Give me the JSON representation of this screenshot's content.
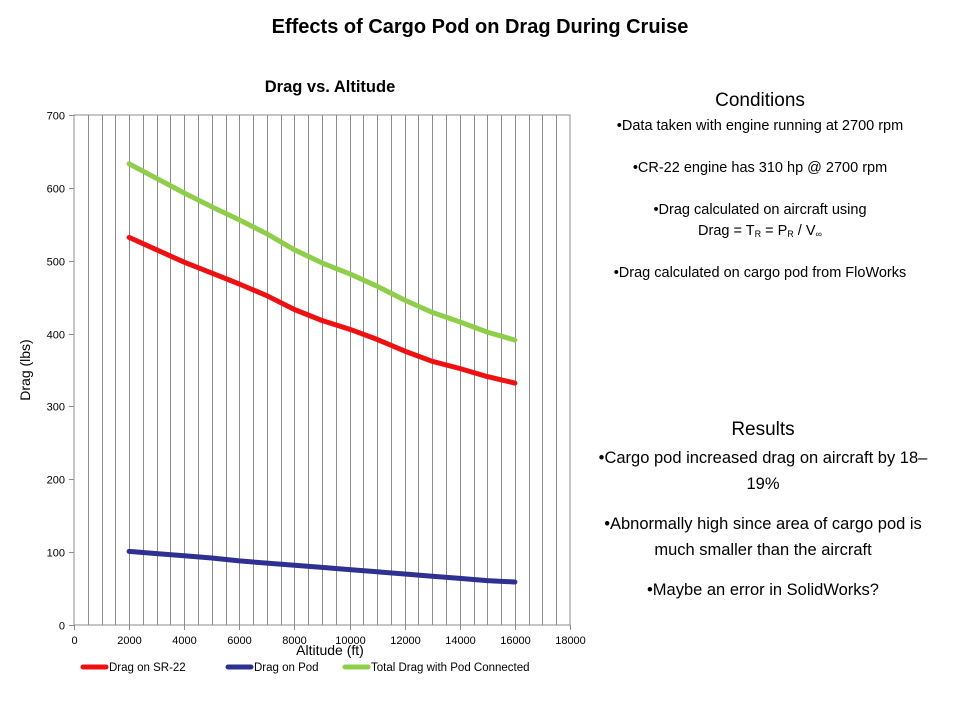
{
  "slide_title": "Effects of Cargo Pod on Drag During Cruise",
  "conditions": {
    "heading": "Conditions",
    "item1": "•Data taken with engine running at 2700 rpm",
    "item2": "•CR-22 engine has 310 hp @ 2700 rpm",
    "item3_line1": "•Drag calculated on aircraft using",
    "item3_line2_parts": [
      "Drag = T",
      "R",
      " = P",
      "R",
      " / V",
      "∞"
    ],
    "item4": "•Drag calculated on cargo pod from FloWorks"
  },
  "results": {
    "heading": "Results",
    "item1": "•Cargo pod increased drag on aircraft by 18–19%",
    "item2": "•Abnormally high since area of cargo pod is much smaller than the aircraft",
    "item3": "•Maybe an error in SolidWorks?"
  },
  "chart_data": {
    "type": "line",
    "title": "Drag vs. Altitude",
    "xlabel": "Altitude (ft)",
    "ylabel": "Drag (lbs)",
    "xlim": [
      0,
      18000
    ],
    "ylim": [
      0,
      700
    ],
    "x_ticks": [
      0,
      2000,
      4000,
      6000,
      8000,
      10000,
      12000,
      14000,
      16000,
      18000
    ],
    "y_ticks": [
      0,
      100,
      200,
      300,
      400,
      500,
      600,
      700
    ],
    "x_minor_step": 500,
    "grid": true,
    "legend_position": "bottom",
    "x": [
      2000,
      3000,
      4000,
      5000,
      6000,
      7000,
      8000,
      9000,
      10000,
      11000,
      12000,
      13000,
      14000,
      15000,
      16000
    ],
    "series": [
      {
        "name": "Drag on SR-22",
        "color": "#ee1111",
        "values": [
          532,
          515,
          498,
          483,
          468,
          452,
          433,
          418,
          406,
          392,
          376,
          362,
          352,
          341,
          332
        ]
      },
      {
        "name": "Drag on Pod",
        "color": "#2e3192",
        "values": [
          101,
          98,
          95,
          92,
          88,
          85,
          82,
          79,
          76,
          73,
          70,
          67,
          64,
          61,
          59
        ]
      },
      {
        "name": "Total Drag with Pod Connected",
        "color": "#8fce4a",
        "values": [
          633,
          613,
          593,
          574,
          556,
          537,
          515,
          497,
          482,
          465,
          446,
          429,
          416,
          402,
          391
        ]
      }
    ]
  }
}
